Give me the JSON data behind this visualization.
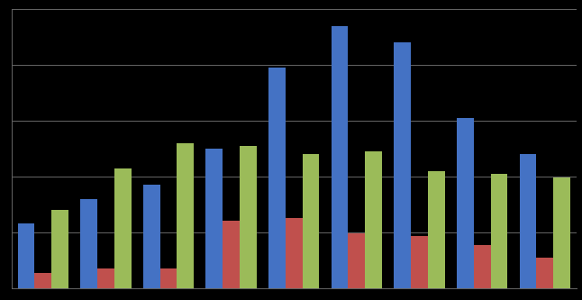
{
  "series": {
    "blue": [
      230,
      320,
      370,
      500,
      790,
      940,
      880,
      610,
      480
    ],
    "red": [
      55,
      70,
      70,
      240,
      250,
      195,
      185,
      155,
      110
    ],
    "green": [
      280,
      430,
      520,
      510,
      480,
      490,
      420,
      410,
      395
    ]
  },
  "bar_colors": {
    "blue": "#4472C4",
    "red": "#C0504D",
    "green": "#9BBB59"
  },
  "background_color": "#000000",
  "plot_bg_color": "#000000",
  "grid_color": "#666666",
  "ylim": [
    0,
    1000
  ],
  "bar_width": 0.27,
  "yticks": [
    200,
    400,
    600,
    800,
    1000
  ]
}
